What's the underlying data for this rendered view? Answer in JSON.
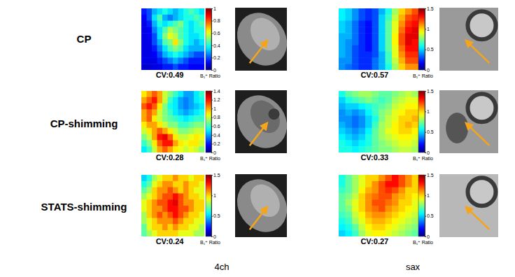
{
  "figure": {
    "row_labels": [
      "CP",
      "CP-shimming",
      "STATS-shimming"
    ],
    "column_labels": [
      "4ch",
      "sax"
    ]
  },
  "chart_data": [
    {
      "type": "heatmap",
      "annotations": [
        "CV:0.49"
      ],
      "colorbar": {
        "label": "B₁⁺ Ratio",
        "range": [
          0,
          1
        ],
        "ticks": [
          0,
          0.2,
          0.4,
          0.6,
          0.8,
          1
        ]
      },
      "z": [
        [
          0.15,
          0.2,
          0.3,
          0.35,
          0.4,
          0.35,
          0.3,
          0.35,
          0.4,
          0.45,
          0.4,
          0.35
        ],
        [
          0.12,
          0.2,
          0.35,
          0.45,
          0.3,
          0.25,
          0.3,
          0.35,
          0.4,
          0.4,
          0.45,
          0.4
        ],
        [
          0.1,
          0.15,
          0.3,
          0.4,
          0.35,
          0.4,
          0.45,
          0.5,
          0.4,
          0.35,
          0.4,
          0.45
        ],
        [
          0.1,
          0.12,
          0.25,
          0.35,
          0.45,
          0.55,
          0.5,
          0.45,
          0.4,
          0.35,
          0.4,
          0.4
        ],
        [
          0.1,
          0.12,
          0.2,
          0.35,
          0.5,
          0.6,
          0.55,
          0.45,
          0.4,
          0.35,
          0.35,
          0.4
        ],
        [
          0.1,
          0.1,
          0.2,
          0.3,
          0.45,
          0.5,
          0.65,
          0.5,
          0.4,
          0.35,
          0.3,
          0.35
        ],
        [
          0.1,
          0.1,
          0.15,
          0.25,
          0.35,
          0.45,
          0.5,
          0.45,
          0.35,
          0.3,
          0.3,
          0.3
        ],
        [
          0.1,
          0.1,
          0.12,
          0.2,
          0.3,
          0.35,
          0.4,
          0.35,
          0.3,
          0.25,
          0.2,
          0.2
        ],
        [
          0.1,
          0.1,
          0.1,
          0.15,
          0.2,
          0.25,
          0.3,
          0.25,
          0.2,
          0.15,
          0.15,
          0.15
        ],
        [
          0.08,
          0.08,
          0.1,
          0.1,
          0.15,
          0.15,
          0.2,
          0.15,
          0.15,
          0.12,
          0.12,
          0.12
        ]
      ]
    },
    {
      "type": "heatmap",
      "annotations": [
        "CV:0.57"
      ],
      "colorbar": {
        "label": "B₁⁺ Ratio",
        "range": [
          0,
          1.5
        ],
        "ticks": [
          0,
          0.5,
          1,
          1.5
        ]
      },
      "z": [
        [
          0.55,
          0.5,
          0.4,
          0.3,
          0.25,
          0.3,
          0.45,
          0.6,
          0.8,
          1.0,
          1.1,
          1.2
        ],
        [
          0.55,
          0.5,
          0.4,
          0.3,
          0.25,
          0.3,
          0.5,
          0.65,
          0.85,
          1.05,
          1.2,
          1.25
        ],
        [
          0.5,
          0.45,
          0.35,
          0.25,
          0.2,
          0.3,
          0.5,
          0.7,
          0.9,
          1.1,
          1.25,
          1.3
        ],
        [
          0.5,
          0.45,
          0.35,
          0.25,
          0.2,
          0.3,
          0.5,
          0.7,
          0.9,
          1.15,
          1.3,
          1.35
        ],
        [
          0.45,
          0.45,
          0.35,
          0.25,
          0.2,
          0.3,
          0.5,
          0.7,
          0.95,
          1.2,
          1.35,
          1.35
        ],
        [
          0.45,
          0.4,
          0.35,
          0.25,
          0.2,
          0.3,
          0.5,
          0.7,
          0.95,
          1.2,
          1.35,
          1.3
        ],
        [
          0.45,
          0.4,
          0.3,
          0.25,
          0.2,
          0.3,
          0.5,
          0.7,
          0.9,
          1.15,
          1.3,
          1.3
        ],
        [
          0.45,
          0.4,
          0.3,
          0.25,
          0.25,
          0.3,
          0.45,
          0.65,
          0.9,
          1.1,
          1.25,
          1.25
        ],
        [
          0.4,
          0.4,
          0.3,
          0.25,
          0.25,
          0.35,
          0.45,
          0.65,
          0.85,
          1.05,
          1.2,
          1.2
        ],
        [
          0.4,
          0.35,
          0.3,
          0.25,
          0.25,
          0.35,
          0.45,
          0.6,
          0.8,
          1.0,
          1.1,
          1.1
        ]
      ]
    },
    {
      "type": "heatmap",
      "annotations": [
        "CV:0.28"
      ],
      "colorbar": {
        "label": "B₁⁺ Ratio",
        "range": [
          0,
          1.4
        ],
        "ticks": [
          0,
          0.2,
          0.4,
          0.6,
          0.8,
          1,
          1.2,
          1.4
        ]
      },
      "z": [
        [
          0.9,
          1.0,
          1.1,
          1.0,
          0.8,
          0.7,
          0.6,
          0.5,
          0.4,
          0.4,
          0.5,
          0.6
        ],
        [
          1.0,
          1.1,
          1.2,
          1.0,
          0.8,
          0.6,
          0.5,
          0.4,
          0.35,
          0.4,
          0.5,
          0.55
        ],
        [
          1.1,
          1.2,
          1.1,
          0.9,
          0.7,
          0.55,
          0.5,
          0.4,
          0.35,
          0.4,
          0.45,
          0.5
        ],
        [
          1.0,
          1.1,
          1.0,
          0.8,
          0.7,
          0.6,
          0.5,
          0.45,
          0.4,
          0.45,
          0.5,
          0.55
        ],
        [
          1.0,
          1.1,
          0.9,
          0.8,
          0.7,
          0.65,
          0.6,
          0.55,
          0.5,
          0.55,
          0.6,
          0.6
        ],
        [
          0.9,
          1.0,
          1.0,
          0.9,
          0.8,
          0.7,
          0.7,
          0.6,
          0.6,
          0.65,
          0.7,
          0.7
        ],
        [
          0.8,
          0.9,
          1.0,
          1.1,
          1.0,
          0.9,
          0.8,
          0.7,
          0.7,
          0.75,
          0.8,
          0.8
        ],
        [
          0.7,
          0.8,
          1.0,
          1.2,
          1.25,
          1.1,
          0.9,
          0.8,
          0.8,
          0.85,
          0.9,
          0.85
        ],
        [
          0.6,
          0.7,
          0.9,
          1.1,
          1.2,
          1.2,
          1.0,
          0.9,
          0.85,
          0.9,
          0.9,
          0.8
        ],
        [
          0.5,
          0.6,
          0.8,
          1.0,
          1.1,
          1.0,
          0.9,
          0.85,
          0.8,
          0.85,
          0.8,
          0.7
        ]
      ]
    },
    {
      "type": "heatmap",
      "annotations": [
        "CV:0.33"
      ],
      "colorbar": {
        "label": "B₁⁺ Ratio",
        "range": [
          0,
          1.5
        ],
        "ticks": [
          0,
          0.5,
          1,
          1.5
        ]
      },
      "z": [
        [
          0.6,
          0.7,
          0.75,
          0.8,
          0.8,
          0.75,
          0.7,
          0.7,
          0.75,
          0.8,
          0.85,
          0.8
        ],
        [
          0.5,
          0.6,
          0.65,
          0.7,
          0.75,
          0.7,
          0.65,
          0.7,
          0.8,
          0.85,
          0.9,
          0.9
        ],
        [
          0.45,
          0.5,
          0.5,
          0.55,
          0.6,
          0.65,
          0.7,
          0.75,
          0.85,
          0.9,
          0.95,
          0.95
        ],
        [
          0.4,
          0.45,
          0.4,
          0.45,
          0.55,
          0.65,
          0.75,
          0.8,
          0.9,
          0.95,
          1.0,
          1.0
        ],
        [
          0.4,
          0.4,
          0.35,
          0.4,
          0.5,
          0.6,
          0.75,
          0.85,
          0.9,
          1.0,
          1.0,
          1.05
        ],
        [
          0.45,
          0.4,
          0.35,
          0.4,
          0.5,
          0.65,
          0.8,
          0.85,
          0.95,
          1.0,
          1.05,
          1.0
        ],
        [
          0.5,
          0.45,
          0.4,
          0.45,
          0.55,
          0.7,
          0.8,
          0.9,
          0.95,
          1.0,
          1.0,
          0.95
        ],
        [
          0.55,
          0.5,
          0.45,
          0.5,
          0.6,
          0.7,
          0.8,
          0.85,
          0.9,
          0.95,
          0.95,
          0.9
        ],
        [
          0.6,
          0.55,
          0.5,
          0.55,
          0.6,
          0.7,
          0.75,
          0.8,
          0.85,
          0.9,
          0.9,
          0.85
        ],
        [
          0.6,
          0.6,
          0.55,
          0.6,
          0.65,
          0.7,
          0.75,
          0.75,
          0.8,
          0.85,
          0.85,
          0.8
        ]
      ]
    },
    {
      "type": "heatmap",
      "annotations": [
        "CV:0.24"
      ],
      "colorbar": {
        "label": "B₁⁺ Ratio",
        "range": [
          0,
          1.5
        ],
        "ticks": [
          0,
          0.5,
          1,
          1.5
        ]
      },
      "z": [
        [
          0.5,
          0.6,
          0.8,
          0.9,
          1.0,
          1.0,
          1.1,
          1.0,
          1.0,
          0.9,
          1.0,
          1.0
        ],
        [
          0.6,
          0.7,
          0.9,
          1.0,
          1.1,
          1.1,
          1.0,
          1.0,
          1.1,
          1.0,
          1.0,
          0.9
        ],
        [
          0.7,
          0.8,
          1.0,
          1.1,
          1.1,
          1.2,
          1.1,
          1.0,
          1.1,
          1.0,
          0.9,
          0.9
        ],
        [
          0.8,
          0.9,
          1.0,
          1.1,
          1.2,
          1.2,
          1.3,
          1.2,
          1.1,
          1.0,
          1.0,
          0.9
        ],
        [
          0.9,
          1.0,
          1.1,
          1.2,
          1.2,
          1.3,
          1.35,
          1.2,
          1.1,
          1.1,
          1.0,
          1.0
        ],
        [
          0.9,
          1.0,
          1.1,
          1.1,
          1.2,
          1.3,
          1.3,
          1.2,
          1.2,
          1.1,
          1.0,
          1.0
        ],
        [
          0.8,
          1.0,
          1.1,
          1.2,
          1.1,
          1.2,
          1.3,
          1.2,
          1.1,
          1.0,
          1.0,
          0.9
        ],
        [
          0.8,
          0.9,
          1.0,
          1.1,
          1.1,
          1.1,
          1.2,
          1.1,
          1.0,
          1.0,
          0.9,
          0.9
        ],
        [
          0.7,
          0.9,
          1.0,
          1.0,
          1.1,
          1.0,
          1.1,
          1.0,
          1.0,
          0.9,
          0.9,
          0.8
        ],
        [
          0.7,
          0.8,
          0.9,
          1.0,
          1.0,
          1.0,
          1.0,
          0.9,
          0.9,
          0.9,
          0.8,
          0.8
        ]
      ]
    },
    {
      "type": "heatmap",
      "annotations": [
        "CV:0.27"
      ],
      "colorbar": {
        "label": "B₁⁺ Ratio",
        "range": [
          0,
          1.5
        ],
        "ticks": [
          0,
          0.5,
          1,
          1.5
        ]
      },
      "z": [
        [
          0.6,
          0.7,
          0.8,
          0.9,
          1.0,
          1.0,
          1.1,
          1.2,
          1.3,
          1.2,
          1.1,
          1.0
        ],
        [
          0.6,
          0.7,
          0.8,
          0.9,
          1.0,
          1.1,
          1.2,
          1.3,
          1.3,
          1.2,
          1.1,
          1.0
        ],
        [
          0.65,
          0.7,
          0.8,
          0.95,
          1.05,
          1.1,
          1.2,
          1.25,
          1.2,
          1.1,
          1.0,
          1.0
        ],
        [
          0.7,
          0.75,
          0.85,
          1.0,
          1.1,
          1.15,
          1.2,
          1.2,
          1.1,
          1.05,
          1.0,
          0.95
        ],
        [
          0.7,
          0.8,
          0.9,
          1.0,
          1.1,
          1.2,
          1.2,
          1.15,
          1.1,
          1.0,
          1.0,
          0.9
        ],
        [
          0.7,
          0.75,
          0.9,
          1.0,
          1.1,
          1.15,
          1.2,
          1.1,
          1.05,
          1.0,
          0.95,
          0.9
        ],
        [
          0.65,
          0.7,
          0.85,
          0.95,
          1.05,
          1.1,
          1.1,
          1.05,
          1.0,
          0.95,
          0.9,
          0.85
        ],
        [
          0.6,
          0.65,
          0.8,
          0.9,
          1.0,
          1.05,
          1.05,
          1.0,
          0.95,
          0.9,
          0.85,
          0.8
        ],
        [
          0.55,
          0.6,
          0.7,
          0.85,
          0.95,
          1.0,
          1.0,
          0.95,
          0.9,
          0.85,
          0.8,
          0.75
        ],
        [
          0.5,
          0.55,
          0.65,
          0.8,
          0.9,
          0.95,
          0.95,
          0.9,
          0.85,
          0.8,
          0.75,
          0.7
        ]
      ]
    }
  ]
}
